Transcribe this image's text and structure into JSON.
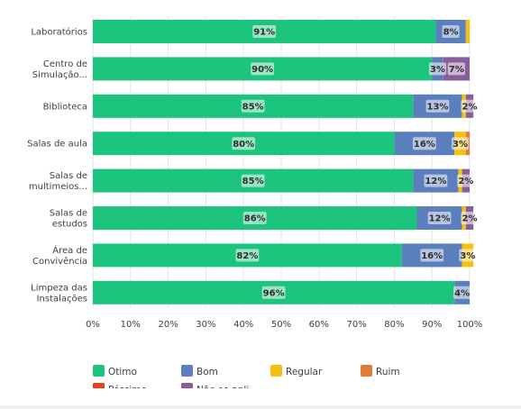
{
  "chart_data": {
    "type": "bar",
    "orientation": "horizontal",
    "stacked": true,
    "categories": [
      "Laboratórios",
      "Centro de Simulação...",
      "Biblioteca",
      "Salas de aula",
      "Salas de multimeios...",
      "Salas de estudos",
      "Área de Convivência",
      "Limpeza das Instalações"
    ],
    "category_lines": [
      [
        "Laboratórios"
      ],
      [
        "Centro de",
        "Simulação..."
      ],
      [
        "Biblioteca"
      ],
      [
        "Salas de aula"
      ],
      [
        "Salas de",
        "multimeios..."
      ],
      [
        "Salas de",
        "estudos"
      ],
      [
        "Área de",
        "Convivência"
      ],
      [
        "Limpeza das",
        "Instalações"
      ]
    ],
    "series": [
      {
        "name": "Otimo",
        "color": "#1dc47d",
        "values": [
          91,
          90,
          85,
          80,
          85,
          86,
          82,
          96
        ]
      },
      {
        "name": "Bom",
        "color": "#5b7fbd",
        "values": [
          8,
          3,
          13,
          16,
          12,
          12,
          16,
          4
        ]
      },
      {
        "name": "Regular",
        "color": "#f5c10e",
        "values": [
          1,
          0,
          1,
          3,
          1,
          1,
          3,
          0
        ]
      },
      {
        "name": "Ruim",
        "color": "#e07b39",
        "values": [
          0,
          0,
          0,
          1,
          0,
          0,
          0,
          0
        ]
      },
      {
        "name": "Péssimo",
        "color": "#e8401d",
        "values": [
          0,
          0,
          0,
          0,
          0,
          0,
          0,
          0
        ]
      },
      {
        "name": "Não se apli...",
        "color": "#8a5d9b",
        "values": [
          0,
          7,
          2,
          0,
          2,
          2,
          0,
          0
        ]
      }
    ],
    "data_labels": [
      [
        "91%",
        "8%",
        "",
        "",
        "",
        ""
      ],
      [
        "90%",
        "3%",
        "",
        "",
        "",
        "7%"
      ],
      [
        "85%",
        "13%",
        "",
        "",
        "",
        "2%"
      ],
      [
        "80%",
        "16%",
        "3%",
        "",
        "",
        ""
      ],
      [
        "85%",
        "12%",
        "",
        "",
        "",
        "2%"
      ],
      [
        "86%",
        "12%",
        "",
        "",
        "",
        "2%"
      ],
      [
        "82%",
        "16%",
        "3%",
        "",
        "",
        ""
      ],
      [
        "96%",
        "4%",
        "",
        "",
        "",
        ""
      ]
    ],
    "x_ticks": [
      "0%",
      "10%",
      "20%",
      "30%",
      "40%",
      "50%",
      "60%",
      "70%",
      "80%",
      "90%",
      "100%"
    ],
    "xlim": [
      0,
      100
    ],
    "grid": true,
    "legend_position": "bottom"
  }
}
